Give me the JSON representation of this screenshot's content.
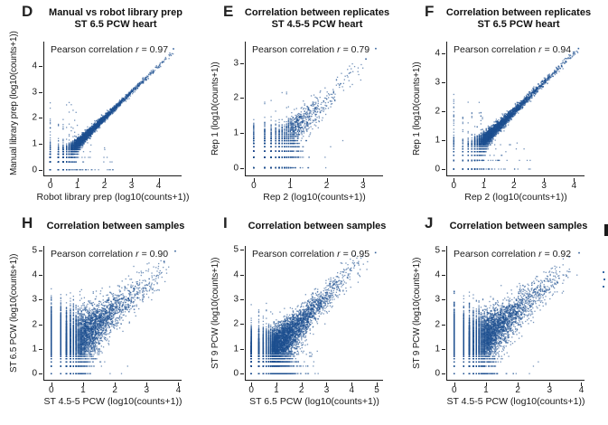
{
  "figure": {
    "background": "#ffffff",
    "dot_color": "#1d4f8f",
    "axis_color": "#1a1a1a",
    "text_color": "#1a1a1a"
  },
  "chart_data": [
    {
      "id": "D",
      "type": "scatter",
      "panel_label": "D",
      "title": "Manual vs robot library prep",
      "subtitle": "ST 6.5 PCW heart",
      "annotation": {
        "prefix": "Pearson correlation",
        "r_symbol": "r",
        "value": "= 0.97"
      },
      "pearson_r": 0.97,
      "xlabel": "Robot library prep (log10(counts+1))",
      "ylabel": "Manual library prep (log10(counts+1))",
      "xticks": [
        0,
        1,
        2,
        3,
        4
      ],
      "yticks": [
        0,
        1,
        2,
        3,
        4
      ],
      "xlim": [
        -0.22,
        4.85
      ],
      "ylim": [
        -0.22,
        4.95
      ],
      "grid": false,
      "points": {
        "n": 9000,
        "seed": 11,
        "scale": 0.8,
        "tmax": 4.5,
        "noise_x": 0.15,
        "noise_y": 0.15,
        "fall0": 0.2,
        "slope": 1,
        "intercept": 0,
        "dropx": 0.025,
        "dropy": 0.02,
        "outliers": [
          [
            4.55,
            4.67
          ]
        ]
      }
    },
    {
      "id": "E",
      "type": "scatter",
      "panel_label": "E",
      "title": "Correlation between replicates",
      "subtitle": "ST 4.5-5 PCW heart",
      "annotation": {
        "prefix": "Pearson correlation",
        "r_symbol": "r",
        "value": "= 0.79"
      },
      "pearson_r": 0.79,
      "xlabel": "Rep 2 (log10(counts+1))",
      "ylabel": "Rep 1 (log10(counts+1))",
      "xticks": [
        0,
        1,
        2,
        3
      ],
      "yticks": [
        0,
        1,
        2,
        3
      ],
      "xlim": [
        -0.22,
        3.55
      ],
      "ylim": [
        -0.22,
        3.62
      ],
      "grid": false,
      "points": {
        "n": 4500,
        "seed": 22,
        "scale": 0.5,
        "tmax": 2.9,
        "noise_x": 0.3,
        "noise_y": 0.3,
        "fall0": 0.35,
        "slope": 1,
        "intercept": 0,
        "dropx": 0.05,
        "dropy": 0.04,
        "outliers": [
          [
            3.35,
            3.42
          ],
          [
            3.08,
            3.12
          ]
        ]
      }
    },
    {
      "id": "F",
      "type": "scatter",
      "panel_label": "F",
      "title": "Correlation between replicates",
      "subtitle": "ST 6.5 PCW heart",
      "annotation": {
        "prefix": "Pearson correlation",
        "r_symbol": "r",
        "value": "= 0.94"
      },
      "pearson_r": 0.94,
      "xlabel": "Rep 2 (log10(counts+1))",
      "ylabel": "Rep 1 (log10(counts+1))",
      "xticks": [
        0,
        1,
        2,
        3,
        4
      ],
      "yticks": [
        0,
        1,
        2,
        3,
        4
      ],
      "xlim": [
        -0.22,
        4.35
      ],
      "ylim": [
        -0.22,
        4.42
      ],
      "grid": false,
      "points": {
        "n": 9000,
        "seed": 33,
        "scale": 0.8,
        "tmax": 4.1,
        "noise_x": 0.18,
        "noise_y": 0.18,
        "fall0": 0.22,
        "slope": 1,
        "intercept": 0,
        "dropx": 0.03,
        "dropy": 0.02,
        "outliers": [
          [
            4.15,
            4.18
          ]
        ]
      }
    },
    {
      "id": "H",
      "type": "scatter",
      "panel_label": "H",
      "title": "Correlation between samples",
      "annotation": {
        "prefix": "Pearson correlation",
        "r_symbol": "r",
        "value": "= 0.90"
      },
      "pearson_r": 0.9,
      "xlabel": "ST 4.5-5 PCW (log10(counts+1))",
      "ylabel": "ST 6.5 PCW (log10(counts+1))",
      "xticks": [
        0,
        1,
        2,
        3,
        4
      ],
      "yticks": [
        0,
        1,
        2,
        3,
        4,
        5
      ],
      "xlim": [
        -0.22,
        4.1
      ],
      "ylim": [
        -0.25,
        5.18
      ],
      "grid": false,
      "points": {
        "n": 8000,
        "seed": 44,
        "scale": 0.7,
        "tmax": 3.55,
        "noise_x": 0.28,
        "noise_y": 0.6,
        "fall0": 0.5,
        "slope": 1.02,
        "intercept": 0.55,
        "dropx": 0.06,
        "dropy": 0.012,
        "outliers": [
          [
            3.9,
            4.97
          ],
          [
            3.55,
            4.55
          ]
        ]
      }
    },
    {
      "id": "I",
      "type": "scatter",
      "panel_label": "I",
      "title": "Correlation between samples",
      "annotation": {
        "prefix": "Pearson correlation",
        "r_symbol": "r",
        "value": "= 0.95"
      },
      "pearson_r": 0.95,
      "xlabel": "ST 6.5 PCW (log10(counts+1))",
      "ylabel": "ST 9 PCW (log10(counts+1))",
      "xticks": [
        0,
        1,
        2,
        3,
        4,
        5
      ],
      "yticks": [
        0,
        1,
        2,
        3,
        4,
        5
      ],
      "xlim": [
        -0.22,
        5.25
      ],
      "ylim": [
        -0.25,
        5.15
      ],
      "grid": false,
      "points": {
        "n": 10000,
        "seed": 55,
        "scale": 0.8,
        "tmax": 4.55,
        "noise_x": 0.45,
        "noise_y": 0.42,
        "fall0": 0.42,
        "slope": 1,
        "intercept": 0.15,
        "dropx": 0.03,
        "dropy": 0.05,
        "outliers": [
          [
            4.95,
            4.88
          ]
        ]
      }
    },
    {
      "id": "J",
      "type": "scatter",
      "panel_label": "J",
      "title": "Correlation between samples",
      "annotation": {
        "prefix": "Pearson correlation",
        "r_symbol": "r",
        "value": "= 0.92"
      },
      "pearson_r": 0.92,
      "xlabel": "ST 4.5-5 PCW (log10(counts+1))",
      "ylabel": "ST 9 PCW (log10(counts+1))",
      "xticks": [
        0,
        1,
        2,
        3,
        4
      ],
      "yticks": [
        0,
        1,
        2,
        3,
        4,
        5
      ],
      "xlim": [
        -0.22,
        4.1
      ],
      "ylim": [
        -0.25,
        5.18
      ],
      "grid": false,
      "points": {
        "n": 9000,
        "seed": 66,
        "scale": 0.7,
        "tmax": 3.5,
        "noise_x": 0.3,
        "noise_y": 0.55,
        "fall0": 0.5,
        "slope": 1.05,
        "intercept": 0.5,
        "dropx": 0.06,
        "dropy": 0.012,
        "outliers": [
          [
            3.93,
            4.9
          ],
          [
            3.62,
            4.75
          ]
        ]
      }
    }
  ]
}
